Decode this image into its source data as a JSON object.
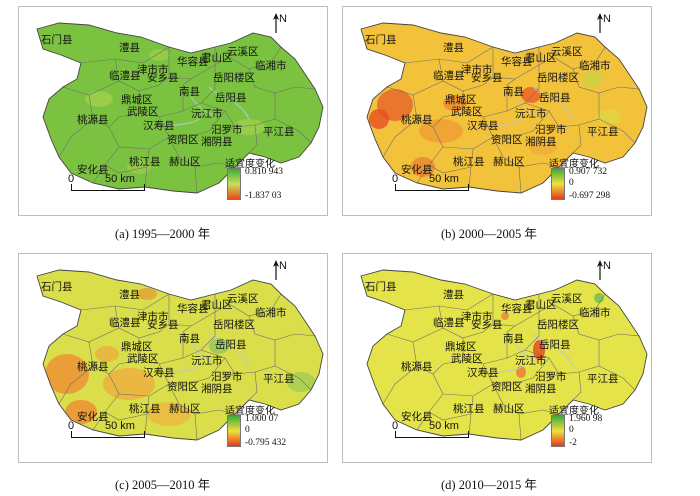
{
  "north_label": "N",
  "legend_title": "适宜度变化",
  "scale": {
    "zero": "0",
    "distance": "50 km"
  },
  "counties": [
    "石门县",
    "澧县",
    "临澧县",
    "津市市",
    "安乡县",
    "华容县",
    "君山区",
    "云溪区",
    "临湘市",
    "岳阳楼区",
    "南县",
    "岳阳县",
    "鼎城区",
    "武陵区",
    "汉寿县",
    "沅江市",
    "桃源县",
    "汨罗市",
    "平江县",
    "资阳区",
    "湘阴县",
    "桃江县",
    "赫山区",
    "安化县"
  ],
  "panels": [
    {
      "caption": "(a) 1995—2000 年",
      "legend_max": "0.810 943",
      "legend_zero": "",
      "legend_min": "-1.837 03",
      "colors": {
        "base": "#7cc241",
        "bar_top": "#3faa3a",
        "bar_mid": "#c8e05a",
        "bar_bottom": "#e84a1a"
      }
    },
    {
      "caption": "(b) 2000—2005 年",
      "legend_max": "0.907 732",
      "legend_zero": "0",
      "legend_min": "-0.697 298",
      "colors": {
        "base": "#f2c33a",
        "bar_top": "#3faa3a",
        "bar_mid": "#f0e040",
        "bar_bottom": "#e23a1e"
      }
    },
    {
      "caption": "(c) 2005—2010 年",
      "legend_max": "1.000 07",
      "legend_zero": "0",
      "legend_min": "-0.795 432",
      "colors": {
        "base": "#d9de4a",
        "bar_top": "#3faa3a",
        "bar_mid": "#f0e040",
        "bar_bottom": "#e23a1e"
      }
    },
    {
      "caption": "(d) 2010—2015 年",
      "legend_max": "1.960 98",
      "legend_zero": "0",
      "legend_min": "-2",
      "colors": {
        "base": "#e4e34a",
        "bar_top": "#3faa3a",
        "bar_mid": "#f0e040",
        "bar_bottom": "#e23a1e"
      }
    }
  ]
}
